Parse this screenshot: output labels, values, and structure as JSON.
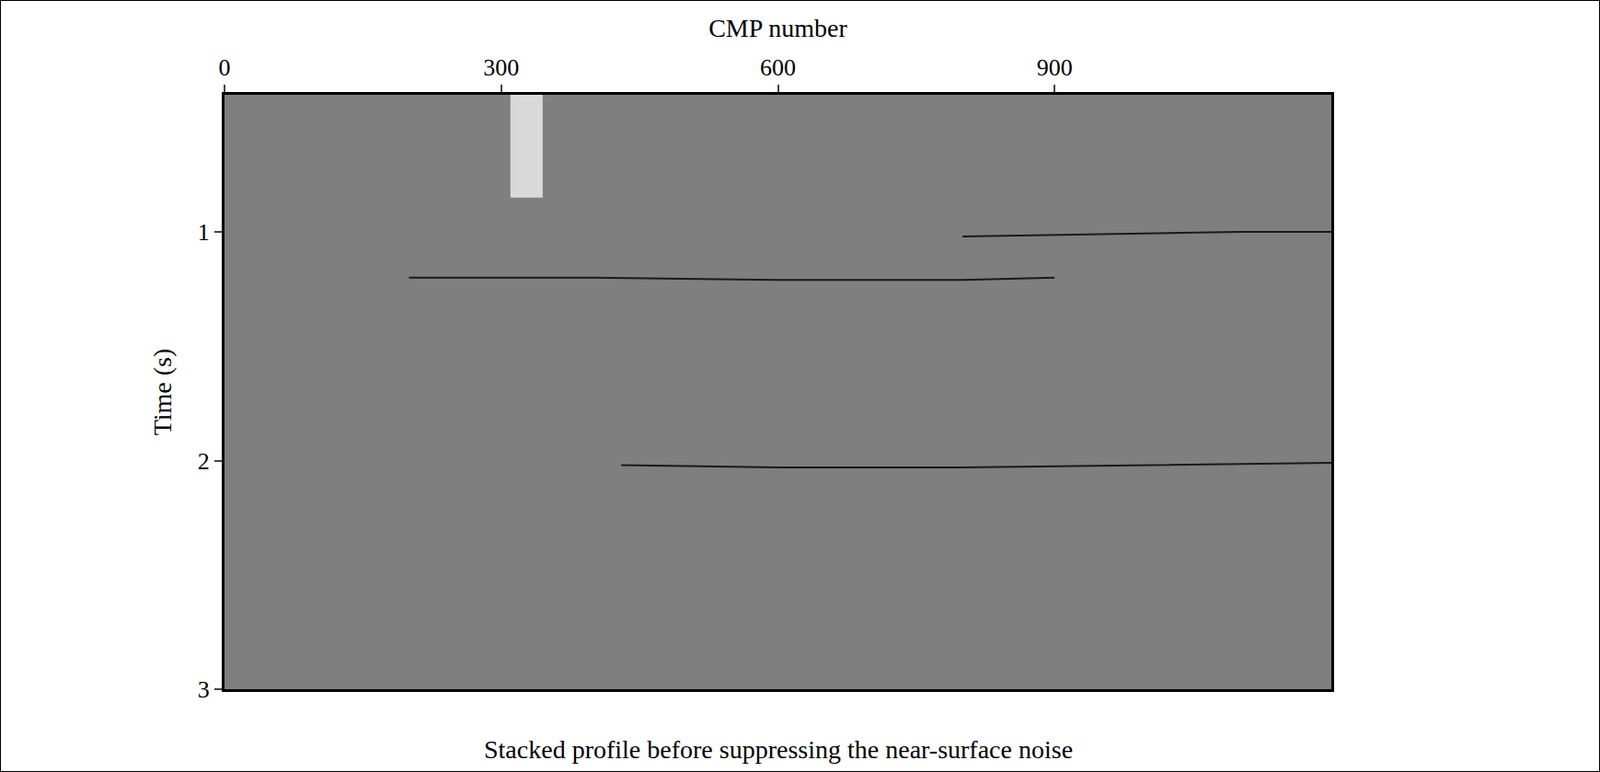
{
  "chart_data": {
    "type": "seismic_section",
    "title": "Stacked profile before suppressing the near-surface noise",
    "x_label": "CMP number",
    "y_label": "Time (s)",
    "xlim": [
      0,
      1200
    ],
    "xticks": [
      0,
      300,
      600,
      900
    ],
    "ylim": [
      3,
      0.4
    ],
    "yticks": [
      1,
      2,
      3
    ],
    "color": "#7f7f7f",
    "series": [
      {
        "x": [
          200,
          400,
          600,
          800,
          900
        ],
        "values": [
          1.2,
          1.2,
          1.21,
          1.21,
          1.2
        ],
        "color": "#1a1a1a"
      },
      {
        "x": [
          430,
          600,
          800,
          1000,
          1200
        ],
        "values": [
          2.02,
          2.03,
          2.03,
          2.02,
          2.01
        ],
        "color": "#1a1a1a"
      },
      {
        "x": [
          800,
          950,
          1100,
          1200
        ],
        "values": [
          1.02,
          1.01,
          1.0,
          1.0
        ],
        "color": "#1a1a1a"
      }
    ],
    "noise_zone": {
      "x": [
        310,
        345
      ],
      "y": [
        0.4,
        0.85
      ],
      "color": "#d9d9d9"
    }
  }
}
